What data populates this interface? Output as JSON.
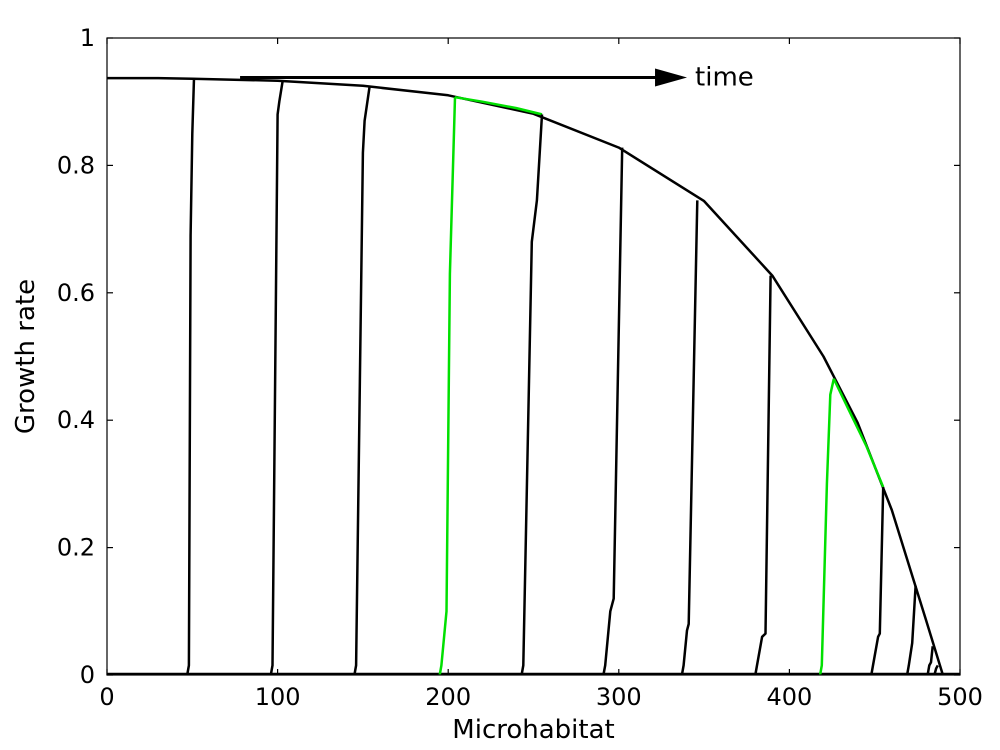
{
  "chart_data": {
    "type": "line",
    "title": "",
    "xlabel": "Microhabitat",
    "ylabel": "Growth rate",
    "xlim": [
      0,
      500
    ],
    "ylim": [
      0,
      1
    ],
    "xticks": [
      0,
      100,
      200,
      300,
      400,
      500
    ],
    "yticks": [
      0,
      0.2,
      0.4,
      0.6,
      0.8,
      1
    ],
    "xtick_labels": [
      "0",
      "100",
      "200",
      "300",
      "400",
      "500"
    ],
    "ytick_labels": [
      "0",
      "0.2",
      "0.4",
      "0.6",
      "0.8",
      "1"
    ],
    "grid": false,
    "legend": "none",
    "colors": {
      "default": "#000000",
      "highlight": "#00e000"
    },
    "annotation": {
      "text": "time",
      "arrow_from": [
        78,
        0.938
      ],
      "arrow_to": [
        340,
        0.938
      ]
    },
    "envelope": {
      "x": [
        0,
        30,
        50,
        100,
        150,
        200,
        250,
        300,
        350,
        390,
        420,
        440,
        460,
        480,
        490
      ],
      "y": [
        0.937,
        0.937,
        0.936,
        0.933,
        0.925,
        0.91,
        0.881,
        0.828,
        0.744,
        0.627,
        0.5,
        0.396,
        0.259,
        0.087,
        0.0
      ]
    },
    "highlight_segments": [
      {
        "x": [
          204,
          220,
          240,
          255
        ],
        "y": [
          0.907,
          0.9,
          0.89,
          0.88
        ],
        "color": "#00e000"
      },
      {
        "x": [
          426,
          435,
          445,
          455
        ],
        "y": [
          0.465,
          0.415,
          0.36,
          0.295
        ],
        "color": "#00e000"
      }
    ],
    "series": [
      {
        "x": [
          47,
          48,
          49,
          50,
          51
        ],
        "y": [
          0.0,
          0.015,
          0.69,
          0.85,
          0.937
        ],
        "color": "#000000"
      },
      {
        "x": [
          96,
          97,
          100,
          101,
          103
        ],
        "y": [
          0.0,
          0.015,
          0.88,
          0.9,
          0.933
        ],
        "color": "#000000"
      },
      {
        "x": [
          145,
          146,
          150,
          151,
          154
        ],
        "y": [
          0.0,
          0.015,
          0.82,
          0.87,
          0.925
        ],
        "color": "#000000"
      },
      {
        "x": [
          195,
          196,
          199,
          201,
          204
        ],
        "y": [
          0.0,
          0.015,
          0.1,
          0.63,
          0.907
        ],
        "color": "#00e000"
      },
      {
        "x": [
          243,
          244,
          249,
          252,
          255
        ],
        "y": [
          0.0,
          0.015,
          0.68,
          0.745,
          0.88
        ],
        "color": "#000000"
      },
      {
        "x": [
          291,
          292,
          295,
          297,
          302
        ],
        "y": [
          0.0,
          0.015,
          0.1,
          0.12,
          0.828
        ],
        "color": "#000000"
      },
      {
        "x": [
          337,
          338,
          340,
          341,
          346
        ],
        "y": [
          0.0,
          0.015,
          0.07,
          0.08,
          0.745
        ],
        "color": "#000000"
      },
      {
        "x": [
          380,
          381,
          384,
          386,
          389
        ],
        "y": [
          0.0,
          0.015,
          0.06,
          0.065,
          0.627
        ],
        "color": "#000000"
      },
      {
        "x": [
          418,
          419,
          422,
          424,
          426
        ],
        "y": [
          0.0,
          0.015,
          0.3,
          0.44,
          0.465
        ],
        "color": "#00e000"
      },
      {
        "x": [
          448,
          449,
          452,
          453,
          455
        ],
        "y": [
          0.0,
          0.015,
          0.06,
          0.065,
          0.295
        ],
        "color": "#000000"
      },
      {
        "x": [
          469,
          470,
          472,
          474
        ],
        "y": [
          0.0,
          0.015,
          0.05,
          0.14
        ],
        "color": "#000000"
      },
      {
        "x": [
          481,
          482,
          483,
          484
        ],
        "y": [
          0.0,
          0.015,
          0.02,
          0.045
        ],
        "color": "#000000"
      },
      {
        "x": [
          485,
          486,
          487
        ],
        "y": [
          0.0,
          0.01,
          0.015
        ],
        "color": "#000000"
      }
    ]
  }
}
